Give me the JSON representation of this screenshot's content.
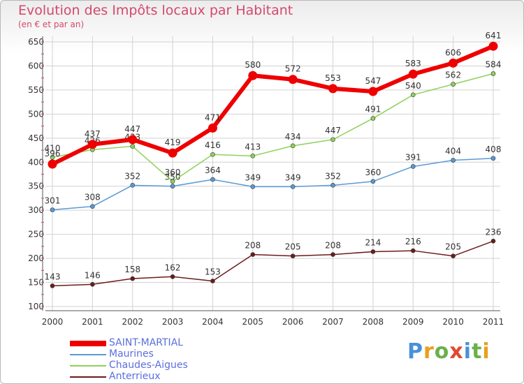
{
  "header": {
    "title": "Evolution des Impôts locaux par Habitant",
    "subtitle": "(en € et par an)"
  },
  "logo": {
    "text": "Proxiti",
    "letter_colors": [
      "#4a90d9",
      "#e8a020",
      "#6ab04c",
      "#e04a2f",
      "#4a90d9",
      "#6ab04c",
      "#e8a020"
    ]
  },
  "chart_data": {
    "type": "line",
    "x": [
      "2000",
      "2001",
      "2002",
      "2003",
      "2004",
      "2005",
      "2006",
      "2007",
      "2008",
      "2009",
      "2010",
      "2011"
    ],
    "ylim": [
      100,
      650
    ],
    "yticks": [
      100,
      150,
      200,
      250,
      300,
      350,
      400,
      450,
      500,
      550,
      600,
      650
    ],
    "grid": true,
    "legend_position": "bottom-left",
    "series": [
      {
        "name": "SAINT-MARTIAL",
        "color": "#ee0000",
        "values": [
          396,
          437,
          447,
          419,
          471,
          580,
          572,
          553,
          547,
          583,
          606,
          641
        ]
      },
      {
        "name": "Maurines",
        "color": "#5a9ad6",
        "values": [
          301,
          308,
          352,
          350,
          364,
          349,
          349,
          352,
          360,
          391,
          404,
          408
        ]
      },
      {
        "name": "Chaudes-Aigues",
        "color": "#8fd15a",
        "values": [
          410,
          426,
          433,
          360,
          416,
          413,
          434,
          447,
          491,
          540,
          562,
          584
        ]
      },
      {
        "name": "Anterrieux",
        "color": "#6b1c1c",
        "values": [
          143,
          146,
          158,
          162,
          153,
          208,
          205,
          208,
          214,
          216,
          205,
          236
        ]
      }
    ]
  }
}
